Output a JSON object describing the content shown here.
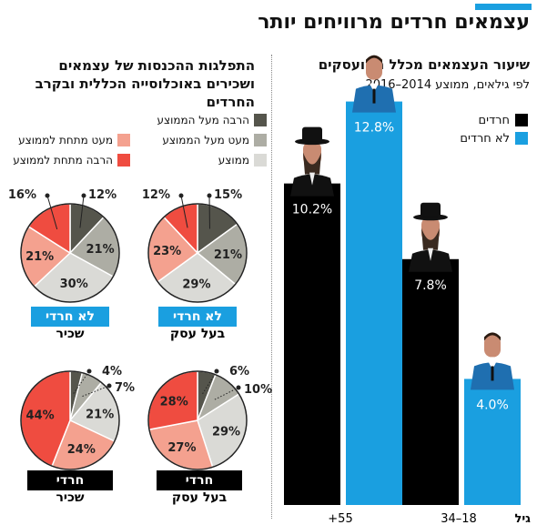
{
  "page": {
    "title": "עצמאים חרדים מרוויחים יותר",
    "accent_color": "#1a9fe0"
  },
  "bar_panel": {
    "title": "שיעור העצמאים מכלל המועסקים",
    "subtitle": "לפי גילאים, ממוצע 2014–2016",
    "axis_title": "גיל",
    "icons": [
      "haredi-man-icon",
      "secular-man-icon"
    ]
  },
  "pie_panel": {
    "title_line1": "התפלגות ההכנסות של עצמאים",
    "title_line2": "ושכירים באוכלוסייה הכללית ובקרב",
    "title_line3": "החרדים",
    "legend": [
      {
        "label": "הרבה מעל הממוצע",
        "color": "#55554c"
      },
      {
        "label": "מעט מעל הממוצע",
        "color": "#adada4"
      },
      {
        "label": "ממוצע",
        "color": "#dadad6"
      },
      {
        "label": "מעט מתחת לממוצע",
        "color": "#f4a18f"
      },
      {
        "label": "הרבה מתחת לממוצע",
        "color": "#ef4c40"
      }
    ],
    "groups": {
      "non_haredi_label": "לא חרדי",
      "haredi_label": "חרדי",
      "employee_label": "שכיר",
      "self_employed_label": "בעל עסק"
    }
  },
  "chart_data": [
    {
      "type": "bar",
      "title": "שיעור העצמאים מכלל המועסקים",
      "subtitle": "לפי גילאים, ממוצע 2014–2016",
      "xlabel": "גיל",
      "categories": [
        "+55",
        "34–18"
      ],
      "series": [
        {
          "name": "חרדים",
          "color": "#000000",
          "values": [
            10.2,
            7.8
          ],
          "labels": [
            "10.2%",
            "7.8%"
          ]
        },
        {
          "name": "לא חרדים",
          "color": "#1a9fe0",
          "values": [
            12.8,
            4.0
          ],
          "labels": [
            "12.8%",
            "4.0%"
          ]
        }
      ],
      "ylim": [
        0,
        14
      ]
    },
    {
      "type": "pie",
      "group": "לא חרדי",
      "subgroup": "שכיר",
      "slices": [
        {
          "name": "הרבה מעל הממוצע",
          "value": 12,
          "label": "12%"
        },
        {
          "name": "מעט מעל הממוצע",
          "value": 21,
          "label": "21%"
        },
        {
          "name": "ממוצע",
          "value": 30,
          "label": "30%"
        },
        {
          "name": "מעט מתחת לממוצע",
          "value": 21,
          "label": "21%"
        },
        {
          "name": "הרבה מתחת לממוצע",
          "value": 16,
          "label": "16%"
        }
      ]
    },
    {
      "type": "pie",
      "group": "לא חרדי",
      "subgroup": "בעל עסק",
      "slices": [
        {
          "name": "הרבה מעל הממוצע",
          "value": 15,
          "label": "15%"
        },
        {
          "name": "מעט מעל הממוצע",
          "value": 21,
          "label": "21%"
        },
        {
          "name": "ממוצע",
          "value": 29,
          "label": "29%"
        },
        {
          "name": "מעט מתחת לממוצע",
          "value": 23,
          "label": "23%"
        },
        {
          "name": "הרבה מתחת לממוצע",
          "value": 12,
          "label": "12%"
        }
      ]
    },
    {
      "type": "pie",
      "group": "חרדי",
      "subgroup": "שכיר",
      "slices": [
        {
          "name": "הרבה מעל הממוצע",
          "value": 4,
          "label": "4%"
        },
        {
          "name": "מעט מעל הממוצע",
          "value": 7,
          "label": "7%"
        },
        {
          "name": "ממוצע",
          "value": 21,
          "label": "21%"
        },
        {
          "name": "מעט מתחת לממוצע",
          "value": 24,
          "label": "24%"
        },
        {
          "name": "הרבה מתחת לממוצע",
          "value": 44,
          "label": "44%"
        }
      ]
    },
    {
      "type": "pie",
      "group": "חרדי",
      "subgroup": "בעל עסק",
      "slices": [
        {
          "name": "הרבה מעל הממוצע",
          "value": 6,
          "label": "6%"
        },
        {
          "name": "מעט מעל הממוצע",
          "value": 10,
          "label": "10%"
        },
        {
          "name": "ממוצע",
          "value": 29,
          "label": "29%"
        },
        {
          "name": "מעט מתחת לממוצע",
          "value": 27,
          "label": "27%"
        },
        {
          "name": "הרבה מתחת לממוצע",
          "value": 28,
          "label": "28%"
        }
      ]
    }
  ]
}
